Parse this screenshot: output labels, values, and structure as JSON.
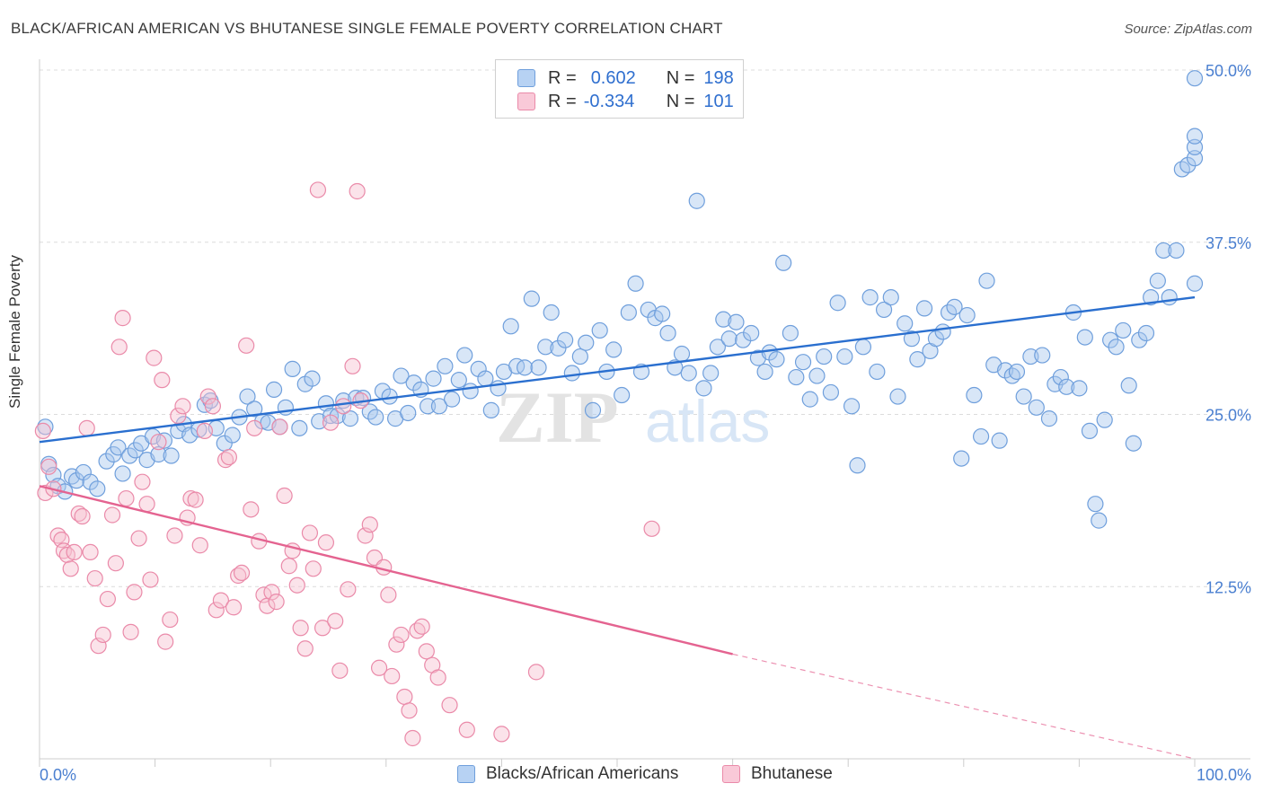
{
  "header": {
    "title": "BLACK/AFRICAN AMERICAN VS BHUTANESE SINGLE FEMALE POVERTY CORRELATION CHART",
    "source": "Source: ZipAtlas.com"
  },
  "watermark": {
    "zip": "ZIP",
    "atlas": "atlas"
  },
  "legend_top": {
    "rows": [
      {
        "r_label": "R =",
        "r_value": "0.602",
        "n_label": "N =",
        "n_value": "198",
        "color": "#9cc3f0"
      },
      {
        "r_label": "R =",
        "r_value": "-0.334",
        "n_label": "N =",
        "n_value": "101",
        "color": "#f6b8cb"
      }
    ]
  },
  "legend_bottom": {
    "series1": "Blacks/African Americans",
    "series2": "Bhutanese"
  },
  "colors": {
    "blue_fill": "#a9c8ee",
    "blue_stroke": "#6f9fdc",
    "blue_line": "#2a6fcf",
    "pink_fill": "#f7c0d1",
    "pink_stroke": "#ea8aa9",
    "pink_line": "#e46390",
    "tick_label": "#4a7fd0",
    "grid": "#dcdcdc"
  },
  "chart_data": {
    "type": "scatter",
    "title": "BLACK/AFRICAN AMERICAN VS BHUTANESE SINGLE FEMALE POVERTY CORRELATION CHART",
    "xlabel": "",
    "ylabel": "Single Female Poverty",
    "xlim": [
      0,
      100
    ],
    "ylim": [
      0,
      50
    ],
    "x_tick_labels": [
      "0.0%",
      "100.0%"
    ],
    "y_ticks": [
      12.5,
      25.0,
      37.5,
      50.0
    ],
    "y_tick_labels": [
      "12.5%",
      "25.0%",
      "37.5%",
      "50.0%"
    ],
    "grid": true,
    "legend": "bottom",
    "series": [
      {
        "name": "Blacks/African Americans",
        "R": 0.602,
        "N": 198,
        "trend": {
          "x": [
            0,
            100
          ],
          "y": [
            23.0,
            33.5
          ]
        },
        "points": [
          [
            0.5,
            24.1
          ],
          [
            0.8,
            21.4
          ],
          [
            1.2,
            20.6
          ],
          [
            1.6,
            19.8
          ],
          [
            2.2,
            19.4
          ],
          [
            2.8,
            20.5
          ],
          [
            3.2,
            20.2
          ],
          [
            3.8,
            20.8
          ],
          [
            4.4,
            20.1
          ],
          [
            5.0,
            19.6
          ],
          [
            5.8,
            21.6
          ],
          [
            6.4,
            22.1
          ],
          [
            6.8,
            22.6
          ],
          [
            7.2,
            20.7
          ],
          [
            7.8,
            22.0
          ],
          [
            8.3,
            22.4
          ],
          [
            8.8,
            22.9
          ],
          [
            9.3,
            21.7
          ],
          [
            9.8,
            23.4
          ],
          [
            10.3,
            22.1
          ],
          [
            10.8,
            23.1
          ],
          [
            11.4,
            22.0
          ],
          [
            12.0,
            23.8
          ],
          [
            12.5,
            24.3
          ],
          [
            13.0,
            23.5
          ],
          [
            13.8,
            23.9
          ],
          [
            14.3,
            25.7
          ],
          [
            14.8,
            26.0
          ],
          [
            15.3,
            24.0
          ],
          [
            16.0,
            22.9
          ],
          [
            16.7,
            23.5
          ],
          [
            17.3,
            24.8
          ],
          [
            18.0,
            26.3
          ],
          [
            18.6,
            25.4
          ],
          [
            19.3,
            24.5
          ],
          [
            19.8,
            24.4
          ],
          [
            20.3,
            26.8
          ],
          [
            20.8,
            24.1
          ],
          [
            21.3,
            25.5
          ],
          [
            21.9,
            28.3
          ],
          [
            22.5,
            24.0
          ],
          [
            23.0,
            27.2
          ],
          [
            23.6,
            27.6
          ],
          [
            24.2,
            24.5
          ],
          [
            24.8,
            25.8
          ],
          [
            25.2,
            24.9
          ],
          [
            25.8,
            24.9
          ],
          [
            26.3,
            26.0
          ],
          [
            26.9,
            24.7
          ],
          [
            27.4,
            26.2
          ],
          [
            28.0,
            26.2
          ],
          [
            28.6,
            25.2
          ],
          [
            29.1,
            24.8
          ],
          [
            29.7,
            26.7
          ],
          [
            30.3,
            26.3
          ],
          [
            30.8,
            24.7
          ],
          [
            31.3,
            27.8
          ],
          [
            31.9,
            25.1
          ],
          [
            32.4,
            27.3
          ],
          [
            33.0,
            26.8
          ],
          [
            33.6,
            25.6
          ],
          [
            34.1,
            27.6
          ],
          [
            34.6,
            25.6
          ],
          [
            35.1,
            28.5
          ],
          [
            35.7,
            26.1
          ],
          [
            36.3,
            27.5
          ],
          [
            36.8,
            29.3
          ],
          [
            37.3,
            26.7
          ],
          [
            38.0,
            28.3
          ],
          [
            38.6,
            27.6
          ],
          [
            39.1,
            25.3
          ],
          [
            39.7,
            26.9
          ],
          [
            40.2,
            28.1
          ],
          [
            40.8,
            31.4
          ],
          [
            41.3,
            28.5
          ],
          [
            42.0,
            28.4
          ],
          [
            42.6,
            33.4
          ],
          [
            43.2,
            28.4
          ],
          [
            43.8,
            29.9
          ],
          [
            44.3,
            32.4
          ],
          [
            44.9,
            29.8
          ],
          [
            45.5,
            30.4
          ],
          [
            46.1,
            28.0
          ],
          [
            46.8,
            29.2
          ],
          [
            47.3,
            30.2
          ],
          [
            47.9,
            25.3
          ],
          [
            48.5,
            31.1
          ],
          [
            49.1,
            28.1
          ],
          [
            49.7,
            29.7
          ],
          [
            50.4,
            26.4
          ],
          [
            51.0,
            32.4
          ],
          [
            51.6,
            34.5
          ],
          [
            52.1,
            28.1
          ],
          [
            52.7,
            32.6
          ],
          [
            53.3,
            32.0
          ],
          [
            53.9,
            32.3
          ],
          [
            54.4,
            30.9
          ],
          [
            55.0,
            28.4
          ],
          [
            55.6,
            29.4
          ],
          [
            56.2,
            28.0
          ],
          [
            56.9,
            40.5
          ],
          [
            57.5,
            26.9
          ],
          [
            58.1,
            28.0
          ],
          [
            58.7,
            29.9
          ],
          [
            59.2,
            31.9
          ],
          [
            59.7,
            30.5
          ],
          [
            60.3,
            31.7
          ],
          [
            60.9,
            30.4
          ],
          [
            61.6,
            30.9
          ],
          [
            62.2,
            29.1
          ],
          [
            62.8,
            28.1
          ],
          [
            63.2,
            29.5
          ],
          [
            63.8,
            29.0
          ],
          [
            64.4,
            36.0
          ],
          [
            65.0,
            30.9
          ],
          [
            65.5,
            27.7
          ],
          [
            66.1,
            28.8
          ],
          [
            66.7,
            26.1
          ],
          [
            67.3,
            27.8
          ],
          [
            67.9,
            29.2
          ],
          [
            68.5,
            26.6
          ],
          [
            69.1,
            33.1
          ],
          [
            69.7,
            29.2
          ],
          [
            70.3,
            25.6
          ],
          [
            70.8,
            21.3
          ],
          [
            71.3,
            29.9
          ],
          [
            71.9,
            33.5
          ],
          [
            72.5,
            28.1
          ],
          [
            73.1,
            32.6
          ],
          [
            73.7,
            33.5
          ],
          [
            74.3,
            26.3
          ],
          [
            74.9,
            31.6
          ],
          [
            75.5,
            30.5
          ],
          [
            76.0,
            29.0
          ],
          [
            76.6,
            32.7
          ],
          [
            77.1,
            29.6
          ],
          [
            77.6,
            30.5
          ],
          [
            78.2,
            31.0
          ],
          [
            78.7,
            32.4
          ],
          [
            79.2,
            32.8
          ],
          [
            79.8,
            21.8
          ],
          [
            80.3,
            32.2
          ],
          [
            80.9,
            26.4
          ],
          [
            81.5,
            23.4
          ],
          [
            82.0,
            34.7
          ],
          [
            82.6,
            28.6
          ],
          [
            83.1,
            23.1
          ],
          [
            83.6,
            28.2
          ],
          [
            84.2,
            27.8
          ],
          [
            84.6,
            28.1
          ],
          [
            85.2,
            26.3
          ],
          [
            85.8,
            29.2
          ],
          [
            86.3,
            25.5
          ],
          [
            86.8,
            29.3
          ],
          [
            87.4,
            24.7
          ],
          [
            87.9,
            27.2
          ],
          [
            88.4,
            27.7
          ],
          [
            88.9,
            27.0
          ],
          [
            89.5,
            32.4
          ],
          [
            90.0,
            26.9
          ],
          [
            90.5,
            30.6
          ],
          [
            90.9,
            23.8
          ],
          [
            91.4,
            18.5
          ],
          [
            91.7,
            17.3
          ],
          [
            92.2,
            24.6
          ],
          [
            92.7,
            30.4
          ],
          [
            93.2,
            29.9
          ],
          [
            93.8,
            31.1
          ],
          [
            94.3,
            27.1
          ],
          [
            94.7,
            22.9
          ],
          [
            95.2,
            30.4
          ],
          [
            95.8,
            30.9
          ],
          [
            96.2,
            33.5
          ],
          [
            96.8,
            34.7
          ],
          [
            97.3,
            36.9
          ],
          [
            97.8,
            33.5
          ],
          [
            98.4,
            36.9
          ],
          [
            98.9,
            42.8
          ],
          [
            99.4,
            43.1
          ],
          [
            100.0,
            34.5
          ],
          [
            100.0,
            43.6
          ],
          [
            100.0,
            44.4
          ],
          [
            100.0,
            49.4
          ],
          [
            100.0,
            45.2
          ]
        ]
      },
      {
        "name": "Bhutanese",
        "R": -0.334,
        "N": 101,
        "trend": {
          "x": [
            0,
            60
          ],
          "y": [
            19.8,
            7.6
          ]
        },
        "trend_dashed": {
          "x": [
            60,
            100
          ],
          "y": [
            7.6,
            0
          ]
        },
        "points": [
          [
            0.3,
            23.8
          ],
          [
            0.5,
            19.3
          ],
          [
            0.8,
            21.2
          ],
          [
            1.2,
            19.6
          ],
          [
            1.6,
            16.2
          ],
          [
            1.9,
            15.9
          ],
          [
            2.1,
            15.1
          ],
          [
            2.4,
            14.8
          ],
          [
            2.7,
            13.8
          ],
          [
            3.0,
            15.0
          ],
          [
            3.4,
            17.8
          ],
          [
            3.7,
            17.6
          ],
          [
            4.1,
            24.0
          ],
          [
            4.4,
            15.0
          ],
          [
            4.8,
            13.1
          ],
          [
            5.1,
            8.2
          ],
          [
            5.5,
            9.0
          ],
          [
            5.9,
            11.6
          ],
          [
            6.3,
            17.7
          ],
          [
            6.6,
            14.2
          ],
          [
            6.9,
            29.9
          ],
          [
            7.2,
            32.0
          ],
          [
            7.5,
            18.9
          ],
          [
            7.9,
            9.2
          ],
          [
            8.2,
            12.1
          ],
          [
            8.6,
            16.0
          ],
          [
            8.9,
            20.1
          ],
          [
            9.3,
            18.5
          ],
          [
            9.6,
            13.0
          ],
          [
            9.9,
            29.1
          ],
          [
            10.3,
            23.0
          ],
          [
            10.6,
            27.5
          ],
          [
            10.9,
            8.5
          ],
          [
            11.3,
            10.1
          ],
          [
            11.7,
            16.2
          ],
          [
            12.0,
            24.9
          ],
          [
            12.4,
            25.6
          ],
          [
            12.8,
            17.5
          ],
          [
            13.1,
            18.9
          ],
          [
            13.5,
            18.8
          ],
          [
            13.9,
            15.5
          ],
          [
            14.3,
            23.8
          ],
          [
            14.6,
            26.3
          ],
          [
            15.0,
            25.6
          ],
          [
            15.3,
            10.8
          ],
          [
            15.7,
            11.5
          ],
          [
            16.1,
            21.7
          ],
          [
            16.4,
            21.9
          ],
          [
            16.8,
            11.0
          ],
          [
            17.2,
            13.3
          ],
          [
            17.5,
            13.5
          ],
          [
            17.9,
            30.0
          ],
          [
            18.3,
            18.1
          ],
          [
            18.6,
            24.0
          ],
          [
            19.0,
            15.8
          ],
          [
            19.4,
            11.9
          ],
          [
            19.7,
            11.1
          ],
          [
            20.1,
            12.1
          ],
          [
            20.5,
            11.4
          ],
          [
            20.8,
            24.1
          ],
          [
            21.2,
            19.1
          ],
          [
            21.6,
            14.0
          ],
          [
            21.9,
            15.1
          ],
          [
            22.3,
            12.6
          ],
          [
            22.6,
            9.5
          ],
          [
            23.0,
            8.0
          ],
          [
            23.4,
            16.4
          ],
          [
            23.7,
            13.8
          ],
          [
            24.1,
            41.3
          ],
          [
            24.5,
            9.5
          ],
          [
            24.8,
            15.7
          ],
          [
            25.2,
            24.4
          ],
          [
            25.6,
            10.0
          ],
          [
            26.0,
            6.4
          ],
          [
            26.3,
            25.6
          ],
          [
            26.7,
            12.3
          ],
          [
            27.1,
            28.5
          ],
          [
            27.5,
            41.2
          ],
          [
            27.8,
            26.0
          ],
          [
            28.2,
            16.2
          ],
          [
            28.6,
            17.0
          ],
          [
            29.0,
            14.6
          ],
          [
            29.4,
            6.6
          ],
          [
            29.8,
            13.9
          ],
          [
            30.2,
            11.9
          ],
          [
            30.5,
            6.0
          ],
          [
            30.9,
            8.3
          ],
          [
            31.3,
            9.0
          ],
          [
            31.6,
            4.5
          ],
          [
            32.0,
            3.5
          ],
          [
            32.3,
            1.5
          ],
          [
            32.7,
            9.3
          ],
          [
            33.1,
            9.6
          ],
          [
            33.5,
            7.8
          ],
          [
            34.0,
            6.8
          ],
          [
            34.5,
            5.9
          ],
          [
            35.5,
            3.9
          ],
          [
            37.0,
            2.1
          ],
          [
            40.0,
            1.8
          ],
          [
            43.0,
            6.3
          ],
          [
            53.0,
            16.7
          ]
        ]
      }
    ]
  }
}
